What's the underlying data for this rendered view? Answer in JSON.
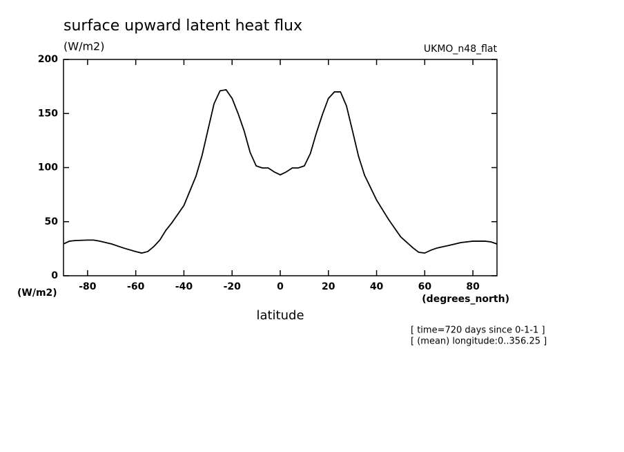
{
  "chart_data": {
    "type": "line",
    "title": "surface upward latent heat flux",
    "units_label": "(W/m2)",
    "dataset_label": "UKMO_n48_flat",
    "y_axis_units": "(W/m2)",
    "x_axis_units": "(degrees_north)",
    "xlabel": "latitude",
    "notes": [
      "[ time=720 days since 0-1-1 ]",
      "[ (mean) longitude:0..356.25 ]"
    ],
    "x": [
      -90,
      -87.5,
      -85,
      -80,
      -77.5,
      -75,
      -70,
      -65,
      -60,
      -57.5,
      -55,
      -52.5,
      -50,
      -47.5,
      -45,
      -40,
      -35,
      -32.5,
      -30,
      -27.5,
      -25,
      -22.5,
      -20,
      -17.5,
      -15,
      -12.5,
      -10,
      -7.5,
      -5,
      -2.5,
      0,
      2.5,
      5,
      7.5,
      10,
      12.5,
      15,
      17.5,
      20,
      22.5,
      25,
      27.5,
      30,
      32.5,
      35,
      40,
      45,
      50,
      55,
      57.5,
      60,
      62.5,
      65,
      70,
      75,
      80,
      85,
      87.5,
      90
    ],
    "series": [
      {
        "name": "surface upward latent heat flux",
        "color": "#000000",
        "values": [
          29.4,
          32,
          32.6,
          33,
          33,
          32,
          29.4,
          25.6,
          22.4,
          21,
          22.4,
          27,
          33,
          42,
          49,
          65,
          92,
          111,
          135,
          159,
          171,
          172,
          164,
          150,
          134,
          114,
          101.6,
          99.7,
          99.7,
          96,
          93.3,
          96,
          99.7,
          99.7,
          101.6,
          113,
          132,
          149,
          164,
          170,
          170,
          157,
          134,
          110.5,
          93,
          70,
          52,
          36,
          26,
          21.7,
          21,
          23.6,
          25.6,
          28,
          30.7,
          32,
          32,
          31.3,
          29.4
        ]
      }
    ],
    "xlim": [
      -90,
      90
    ],
    "xticks": [
      -80,
      -60,
      -40,
      -20,
      0,
      20,
      40,
      60,
      80
    ],
    "ylim": [
      0,
      200
    ],
    "yticks": [
      0,
      50,
      100,
      150,
      200
    ]
  }
}
